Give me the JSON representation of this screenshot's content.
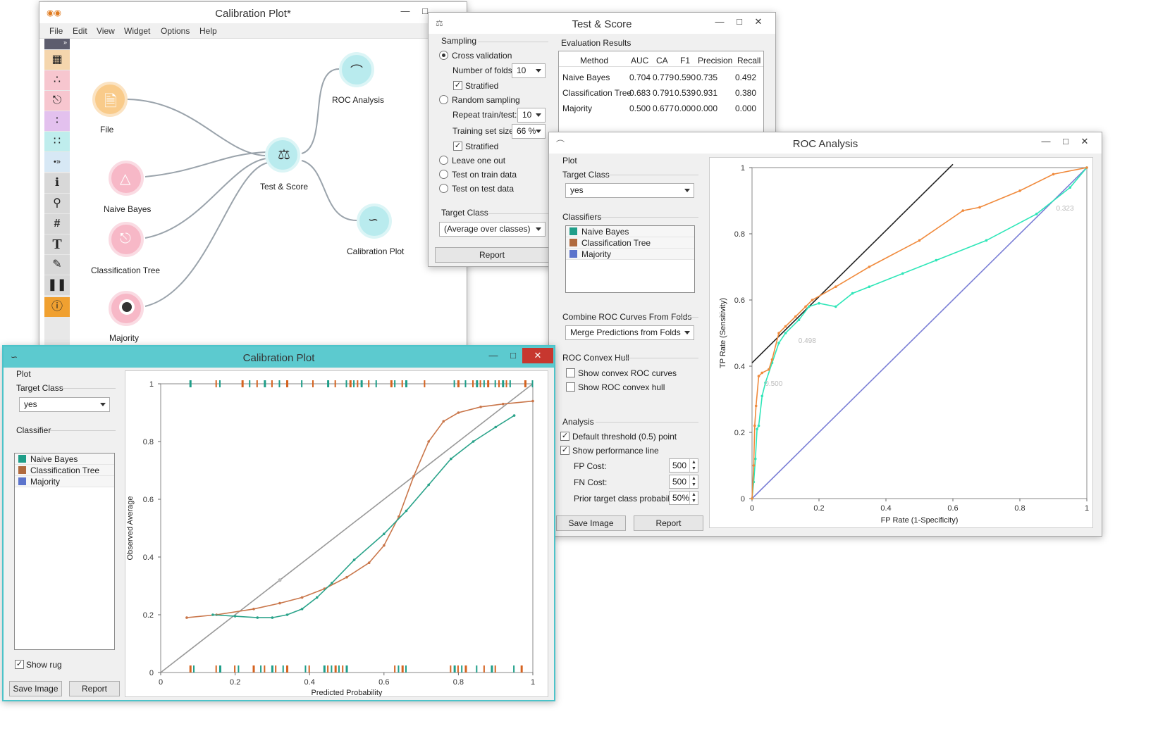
{
  "canvas_window": {
    "title": "Calibration Plot*",
    "menu": [
      "File",
      "Edit",
      "View",
      "Widget",
      "Options",
      "Help"
    ],
    "nodes": [
      {
        "label": "File",
        "icon": "file-icon"
      },
      {
        "label": "Naive Bayes",
        "icon": "naive-bayes-icon"
      },
      {
        "label": "Classification Tree",
        "icon": "tree-icon"
      },
      {
        "label": "Majority",
        "icon": "majority-icon"
      },
      {
        "label": "Test & Score",
        "icon": "flask-icon"
      },
      {
        "label": "ROC Analysis",
        "icon": "roc-icon"
      },
      {
        "label": "Calibration Plot",
        "icon": "calibration-icon"
      }
    ],
    "toolbox": [
      "table-icon",
      "scatter-icon",
      "tree-icon",
      "scatter-icon",
      "grid-icon",
      "expand-icon",
      "info-icon",
      "search-icon",
      "hash-icon",
      "text-icon",
      "pen-icon",
      "pause-icon",
      "help-icon"
    ]
  },
  "test_score": {
    "title": "Test & Score",
    "sampling": {
      "title": "Sampling",
      "cross_validation": "Cross validation",
      "folds_label": "Number of folds:",
      "folds": "10",
      "stratified": "Stratified",
      "random_sampling": "Random sampling",
      "repeat_label": "Repeat train/test:",
      "repeat": "10",
      "train_size_label": "Training set size:",
      "train_size": "66 %",
      "stratified2": "Stratified",
      "leave_one_out": "Leave one out",
      "test_on_train": "Test on train data",
      "test_on_test": "Test on test data"
    },
    "target_class": {
      "title": "Target Class",
      "value": "(Average over classes)"
    },
    "report": "Report",
    "results": {
      "title": "Evaluation Results",
      "headers": [
        "Method",
        "AUC",
        "CA",
        "F1",
        "Precision",
        "Recall"
      ],
      "rows": [
        [
          "Naive Bayes",
          "0.704",
          "0.779",
          "0.590",
          "0.735",
          "0.492"
        ],
        [
          "Classification Tree",
          "0.683",
          "0.791",
          "0.539",
          "0.931",
          "0.380"
        ],
        [
          "Majority",
          "0.500",
          "0.677",
          "0.000",
          "0.000",
          "0.000"
        ]
      ]
    }
  },
  "roc": {
    "title": "ROC Analysis",
    "plot_label": "Plot",
    "target_class_label": "Target Class",
    "target_class": "yes",
    "classifiers_label": "Classifiers",
    "classifiers": [
      {
        "name": "Naive Bayes",
        "color": "#1f9e89"
      },
      {
        "name": "Classification Tree",
        "color": "#b06a3e"
      },
      {
        "name": "Majority",
        "color": "#5c74cc"
      }
    ],
    "combine_label": "Combine ROC Curves From Folds",
    "combine": "Merge Predictions from Folds",
    "hull_label": "ROC Convex Hull",
    "show_hull_curves": "Show convex ROC curves",
    "show_hull": "Show ROC convex hull",
    "analysis_label": "Analysis",
    "default_threshold": "Default threshold (0.5) point",
    "show_perf": "Show performance line",
    "fp_cost_label": "FP Cost:",
    "fp_cost": "500",
    "fn_cost_label": "FN Cost:",
    "fn_cost": "500",
    "prior_label": "Prior target class probability:",
    "prior": "50%",
    "save_image": "Save Image",
    "report": "Report"
  },
  "calib": {
    "title": "Calibration Plot",
    "plot_label": "Plot",
    "target_class_label": "Target Class",
    "target_class": "yes",
    "classifier_label": "Classifier",
    "classifiers": [
      {
        "name": "Naive Bayes",
        "color": "#1f9e89"
      },
      {
        "name": "Classification Tree",
        "color": "#b06a3e"
      },
      {
        "name": "Majority",
        "color": "#5c74cc"
      }
    ],
    "show_rug": "Show rug",
    "save_image": "Save Image",
    "report": "Report"
  },
  "chart_data": [
    {
      "type": "line",
      "title": "",
      "xlabel": "FP Rate (1-Specificity)",
      "ylabel": "TP Rate (Sensitivity)",
      "xlim": [
        0,
        1
      ],
      "ylim": [
        0,
        1
      ],
      "xticks": [
        "0",
        "0.2",
        "0.4",
        "0.6",
        "0.8",
        "1"
      ],
      "yticks": [
        "0",
        "0.2",
        "0.4",
        "0.6",
        "0.8",
        "1"
      ],
      "annotations": [
        "0.323",
        "0.498",
        "0.500"
      ],
      "series": [
        {
          "name": "Classification Tree",
          "color": "#f08a3c",
          "x": [
            0,
            0.005,
            0.008,
            0.012,
            0.02,
            0.03,
            0.05,
            0.06,
            0.08,
            0.1,
            0.13,
            0.16,
            0.18,
            0.25,
            0.35,
            0.5,
            0.63,
            0.68,
            0.8,
            0.9,
            1
          ],
          "y": [
            0,
            0.1,
            0.22,
            0.28,
            0.37,
            0.38,
            0.39,
            0.42,
            0.5,
            0.52,
            0.55,
            0.58,
            0.6,
            0.64,
            0.7,
            0.78,
            0.87,
            0.88,
            0.93,
            0.98,
            1
          ]
        },
        {
          "name": "Naive Bayes",
          "color": "#2ee6b8",
          "x": [
            0,
            0.005,
            0.01,
            0.015,
            0.02,
            0.03,
            0.04,
            0.06,
            0.08,
            0.1,
            0.14,
            0.17,
            0.2,
            0.25,
            0.3,
            0.35,
            0.45,
            0.55,
            0.7,
            0.85,
            0.95,
            1
          ],
          "y": [
            0,
            0.05,
            0.12,
            0.21,
            0.22,
            0.31,
            0.35,
            0.41,
            0.47,
            0.5,
            0.54,
            0.58,
            0.59,
            0.58,
            0.62,
            0.64,
            0.68,
            0.72,
            0.78,
            0.86,
            0.94,
            1
          ]
        },
        {
          "name": "Majority",
          "color": "#7b7fd6",
          "x": [
            0,
            1
          ],
          "y": [
            0,
            1
          ]
        },
        {
          "name": "performance line",
          "color": "#222222",
          "x": [
            0,
            0.6
          ],
          "y": [
            0.41,
            1.01
          ]
        }
      ]
    },
    {
      "type": "line",
      "title": "",
      "xlabel": "Predicted Probability",
      "ylabel": "Observed Average",
      "xlim": [
        0,
        1
      ],
      "ylim": [
        0,
        1
      ],
      "xticks": [
        "0",
        "0.2",
        "0.4",
        "0.6",
        "0.8",
        "1"
      ],
      "yticks": [
        "0",
        "0.2",
        "0.4",
        "0.6",
        "0.8",
        "1"
      ],
      "series": [
        {
          "name": "Naive Bayes",
          "color": "#2aa38a",
          "x": [
            0.14,
            0.2,
            0.26,
            0.3,
            0.34,
            0.38,
            0.42,
            0.46,
            0.52,
            0.6,
            0.66,
            0.72,
            0.78,
            0.84,
            0.9,
            0.95
          ],
          "y": [
            0.2,
            0.195,
            0.19,
            0.19,
            0.2,
            0.22,
            0.26,
            0.31,
            0.39,
            0.48,
            0.56,
            0.65,
            0.74,
            0.8,
            0.85,
            0.89
          ]
        },
        {
          "name": "Classification Tree",
          "color": "#c9764a",
          "x": [
            0.07,
            0.15,
            0.25,
            0.32,
            0.38,
            0.44,
            0.5,
            0.56,
            0.6,
            0.64,
            0.68,
            0.72,
            0.76,
            0.8,
            0.86,
            0.92,
            1
          ],
          "y": [
            0.19,
            0.2,
            0.22,
            0.24,
            0.26,
            0.29,
            0.33,
            0.38,
            0.44,
            0.54,
            0.68,
            0.8,
            0.87,
            0.9,
            0.92,
            0.93,
            0.94
          ]
        },
        {
          "name": "Majority",
          "color": "#999999",
          "x": [
            0,
            1
          ],
          "y": [
            0,
            1
          ]
        }
      ]
    }
  ]
}
